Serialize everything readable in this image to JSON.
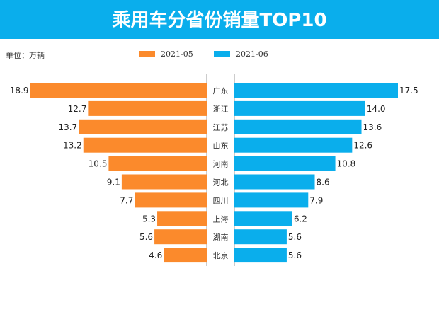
{
  "header": {
    "title": "乘用车分省份销量TOP10"
  },
  "unit_label": "单位：万辆",
  "chart_data": {
    "type": "bar",
    "orientation": "horizontal-butterfly",
    "title": "乘用车分省份销量TOP10",
    "categories": [
      "广东",
      "浙江",
      "江苏",
      "山东",
      "河南",
      "河北",
      "四川",
      "上海",
      "湖南",
      "北京"
    ],
    "series": [
      {
        "name": "2021-05",
        "color": "#fb8a2c",
        "values": [
          18.9,
          12.7,
          13.7,
          13.2,
          10.5,
          9.1,
          7.7,
          5.3,
          5.6,
          4.6
        ]
      },
      {
        "name": "2021-06",
        "color": "#0aaeec",
        "values": [
          17.5,
          14.0,
          13.6,
          12.6,
          10.8,
          8.6,
          7.9,
          6.2,
          5.6,
          5.6
        ]
      }
    ],
    "legend": "top-center",
    "grid": false
  }
}
